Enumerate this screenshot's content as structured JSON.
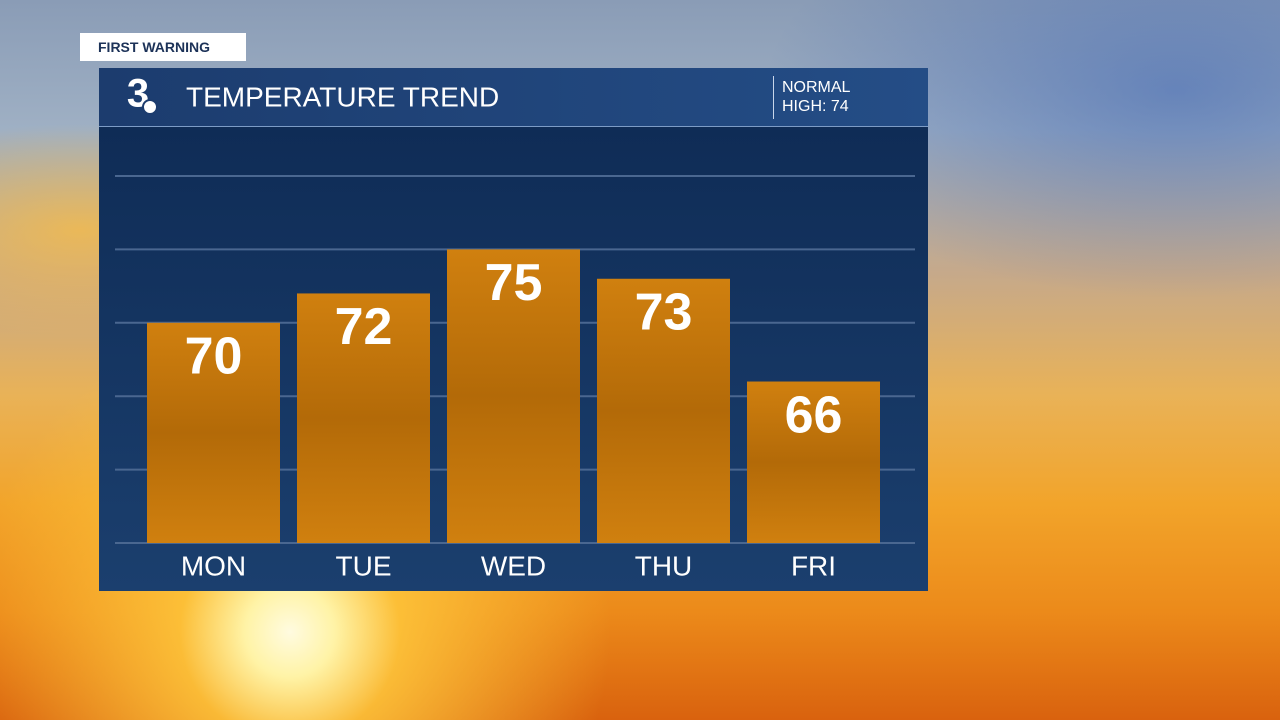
{
  "chart_data": {
    "type": "bar",
    "tag": "FIRST WARNING",
    "logo": "3",
    "title": "TEMPERATURE TREND",
    "note": [
      "NORMAL",
      "HIGH: 74"
    ],
    "categories": [
      "MON",
      "TUE",
      "WED",
      "THU",
      "FRI"
    ],
    "values": [
      70,
      72,
      75,
      73,
      66
    ],
    "color": "#d0800f",
    "ylim": [
      55,
      80
    ],
    "yticks": [
      55,
      60,
      65,
      70,
      75,
      80
    ],
    "grid": true
  }
}
